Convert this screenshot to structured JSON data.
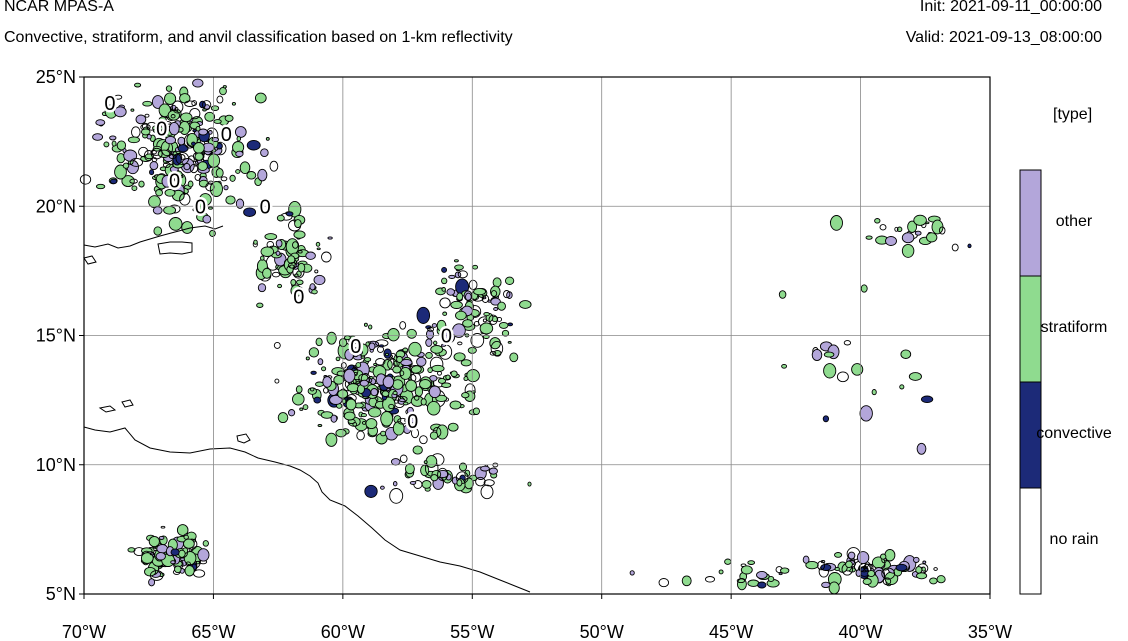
{
  "header": {
    "model": "NCAR MPAS-A",
    "description": "Convective, stratiform, and anvil classification based on 1-km reflectivity",
    "init": "Init: 2021-09-11_00:00:00",
    "valid": "Valid: 2021-09-13_08:00:00"
  },
  "map": {
    "projection": "cylindrical",
    "lon_range": [
      -70,
      -35
    ],
    "lat_range": [
      5,
      25
    ],
    "grid": true,
    "lat_ticks": [
      {
        "value": 25,
        "label": "25°N"
      },
      {
        "value": 20,
        "label": "20°N"
      },
      {
        "value": 15,
        "label": "15°N"
      },
      {
        "value": 10,
        "label": "10°N"
      },
      {
        "value": 5,
        "label": "5°N"
      }
    ],
    "lon_ticks": [
      {
        "value": -70,
        "label": "70°W"
      },
      {
        "value": -65,
        "label": "65°W"
      },
      {
        "value": -60,
        "label": "60°W"
      },
      {
        "value": -55,
        "label": "55°W"
      },
      {
        "value": -50,
        "label": "50°W"
      },
      {
        "value": -45,
        "label": "45°W"
      },
      {
        "value": -40,
        "label": "40°W"
      },
      {
        "value": -35,
        "label": "35°W"
      }
    ],
    "contour_label": "0"
  },
  "colorbar": {
    "title": "[type]",
    "categories": [
      {
        "label": "other",
        "color": "#b3a6da"
      },
      {
        "label": "stratiform",
        "color": "#8fdb8f"
      },
      {
        "label": "convective",
        "color": "#1c2a78"
      },
      {
        "label": "no rain",
        "color": "#ffffff"
      }
    ]
  }
}
